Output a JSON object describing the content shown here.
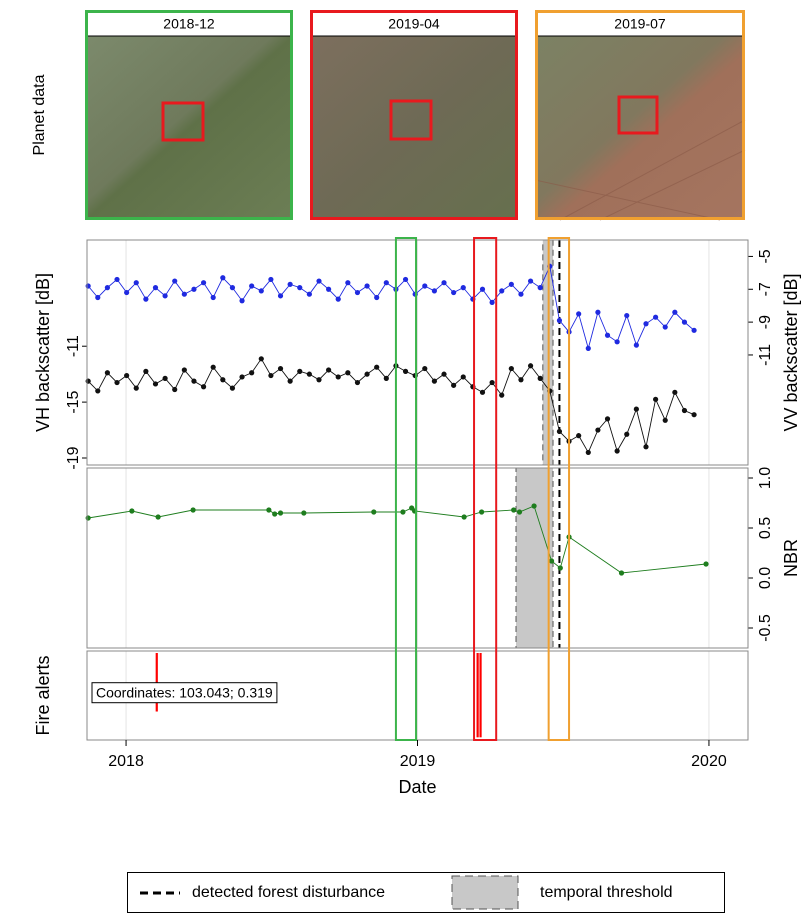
{
  "planet": {
    "label": "Planet data",
    "images": [
      {
        "label": "2018-12",
        "color": "#3cb44b",
        "window": [
          2018.926,
          2018.995
        ]
      },
      {
        "label": "2019-04",
        "color": "#e8191e",
        "window": [
          2019.194,
          2019.27
        ]
      },
      {
        "label": "2019-07",
        "color": "#f0a030",
        "window": [
          2019.45,
          2019.52
        ]
      }
    ]
  },
  "legend": {
    "disturbance": "detected forest disturbance",
    "threshold": "temporal threshold"
  },
  "chart_data": [
    {
      "type": "line",
      "ylabel": "VH backscatter [dB]",
      "y2label": "VV backscatter [dB]",
      "x": [
        2017.87,
        2017.903,
        2017.936,
        2017.969,
        2018.002,
        2018.035,
        2018.068,
        2018.101,
        2018.134,
        2018.167,
        2018.2,
        2018.233,
        2018.266,
        2018.299,
        2018.332,
        2018.365,
        2018.398,
        2018.431,
        2018.464,
        2018.497,
        2018.53,
        2018.563,
        2018.596,
        2018.629,
        2018.662,
        2018.695,
        2018.728,
        2018.761,
        2018.794,
        2018.827,
        2018.86,
        2018.893,
        2018.926,
        2018.959,
        2018.992,
        2019.025,
        2019.058,
        2019.091,
        2019.124,
        2019.157,
        2019.19,
        2019.223,
        2019.256,
        2019.289,
        2019.322,
        2019.355,
        2019.388,
        2019.421,
        2019.454,
        2019.487,
        2019.52,
        2019.553,
        2019.586,
        2019.619,
        2019.652,
        2019.685,
        2019.718,
        2019.751,
        2019.784,
        2019.817,
        2019.85,
        2019.883,
        2019.916,
        2019.949
      ],
      "series": [
        {
          "color": "#111111",
          "values": [
            -13.5,
            -14.2,
            -12.9,
            -13.6,
            -13.1,
            -14.0,
            -12.8,
            -13.7,
            -13.3,
            -14.1,
            -12.7,
            -13.5,
            -13.9,
            -12.5,
            -13.4,
            -14.0,
            -13.2,
            -12.9,
            -11.9,
            -13.1,
            -12.6,
            -13.5,
            -12.8,
            -13.0,
            -13.4,
            -12.7,
            -13.2,
            -12.9,
            -13.6,
            -13.0,
            -12.5,
            -13.3,
            -12.4,
            -12.8,
            -13.1,
            -12.6,
            -13.5,
            -13.0,
            -13.8,
            -13.2,
            -13.9,
            -14.3,
            -13.6,
            -14.5,
            -12.6,
            -13.4,
            -12.4,
            -13.3,
            -14.2,
            -17.1,
            -17.8,
            -17.4,
            -18.6,
            -17.0,
            -16.2,
            -18.5,
            -17.3,
            -15.5,
            -18.2,
            -14.8,
            -16.3,
            -14.3,
            -15.6,
            -15.9
          ]
        },
        {
          "color": "#1f2ae0",
          "axis": "y2",
          "values": [
            -6.8,
            -7.5,
            -6.9,
            -6.4,
            -7.2,
            -6.6,
            -7.6,
            -6.9,
            -7.4,
            -6.5,
            -7.3,
            -7.0,
            -6.6,
            -7.5,
            -6.3,
            -6.9,
            -7.7,
            -6.8,
            -7.1,
            -6.4,
            -7.4,
            -6.7,
            -6.9,
            -7.3,
            -6.5,
            -7.0,
            -7.6,
            -6.6,
            -7.2,
            -6.8,
            -7.5,
            -6.6,
            -7.0,
            -6.4,
            -7.3,
            -6.8,
            -7.1,
            -6.6,
            -7.2,
            -6.9,
            -7.6,
            -7.0,
            -7.8,
            -7.1,
            -6.7,
            -7.3,
            -6.5,
            -6.9,
            -5.6,
            -8.9,
            -9.6,
            -8.5,
            -10.6,
            -8.4,
            -9.8,
            -10.2,
            -8.6,
            -10.4,
            -9.1,
            -8.7,
            -9.3,
            -8.4,
            -9.0,
            -9.5
          ]
        }
      ],
      "ylim": [
        -19.5,
        -3.4
      ],
      "yticks": [
        -11,
        -15,
        -19
      ],
      "y2lim": [
        -17.7,
        -4.0
      ],
      "y2ticks": [
        -5,
        -7,
        -9,
        -11
      ],
      "threshold": [
        2019.43,
        2019.465
      ],
      "disturbance": 2019.487
    },
    {
      "type": "line",
      "y2label": "NBR",
      "x": [
        2017.87,
        2018.02,
        2018.11,
        2018.23,
        2018.49,
        2018.51,
        2018.53,
        2018.61,
        2018.85,
        2018.95,
        2018.98,
        2018.99,
        2019.16,
        2019.22,
        2019.33,
        2019.35,
        2019.4,
        2019.46,
        2019.49,
        2019.52,
        2019.7,
        2019.99
      ],
      "series": [
        {
          "color": "#1e7d1e",
          "axis": "y2",
          "values": [
            0.6,
            0.67,
            0.61,
            0.68,
            0.68,
            0.64,
            0.65,
            0.65,
            0.66,
            0.66,
            0.7,
            0.67,
            0.61,
            0.66,
            0.68,
            0.66,
            0.72,
            0.17,
            0.1,
            0.41,
            0.05,
            0.14
          ]
        }
      ],
      "y2lim": [
        -0.7,
        1.1
      ],
      "y2ticks": [
        {
          "value": 1.0,
          "label": "1.0"
        },
        0.5,
        {
          "value": 0,
          "label": "0.0"
        },
        -0.5
      ],
      "threshold": [
        2019.338,
        2019.465
      ],
      "disturbance": 2019.487
    },
    {
      "type": "bar",
      "ylabel": "Fire alerts",
      "color": "#ff0000",
      "x": [
        2018.105,
        2019.206,
        2019.216
      ],
      "values": [
        0.68,
        0.97,
        0.97
      ],
      "ylim": [
        0,
        1
      ],
      "xlim": [
        2017.866,
        2020.134
      ],
      "xticks": [
        2018,
        2019,
        2020
      ],
      "xlabel": "Date",
      "annotation": "Coordinates: 103.043; 0.319"
    }
  ]
}
